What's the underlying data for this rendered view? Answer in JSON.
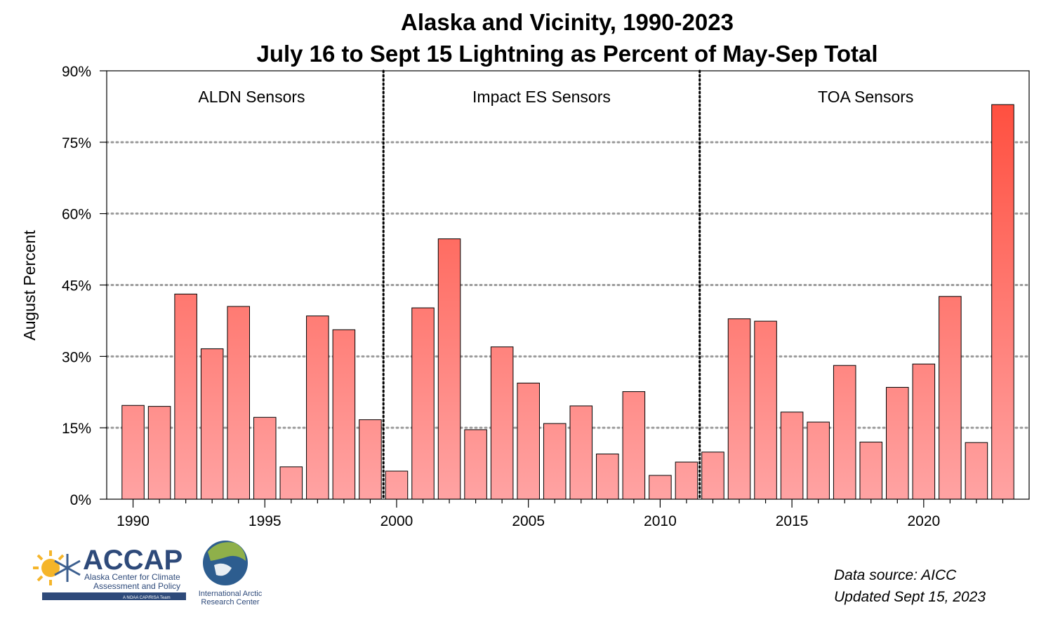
{
  "chart_data": {
    "type": "bar",
    "title": "Alaska and Vicinity, 1990-2023",
    "subtitle": "July 16 to Sept 15 Lightning as Percent of May-Sep Total",
    "ylabel": "August Percent",
    "xlabel": "",
    "ylim": [
      0,
      90
    ],
    "yticks": [
      0,
      15,
      30,
      45,
      60,
      75,
      90
    ],
    "ytick_labels": [
      "0%",
      "15%",
      "30%",
      "45%",
      "60%",
      "75%",
      "90%"
    ],
    "xlim": [
      1989,
      2024
    ],
    "xticks": [
      1990,
      1995,
      2000,
      2005,
      2010,
      2015,
      2020
    ],
    "xtick_labels": [
      "1990",
      "1995",
      "2000",
      "2005",
      "2010",
      "2015",
      "2020"
    ],
    "grid": "horizontal dotted",
    "bar_color_low": "#ffa3a3",
    "bar_color_high": "#ff5040",
    "x": [
      1990,
      1991,
      1992,
      1993,
      1994,
      1995,
      1996,
      1997,
      1998,
      1999,
      2000,
      2001,
      2002,
      2003,
      2004,
      2005,
      2006,
      2007,
      2008,
      2009,
      2010,
      2011,
      2012,
      2013,
      2014,
      2015,
      2016,
      2017,
      2018,
      2019,
      2020,
      2021,
      2022,
      2023
    ],
    "values": [
      19.7,
      19.5,
      43.1,
      31.6,
      40.5,
      17.2,
      6.8,
      38.5,
      35.6,
      16.7,
      5.9,
      40.2,
      54.7,
      14.6,
      32.0,
      24.4,
      15.9,
      19.6,
      9.5,
      22.6,
      5.0,
      7.8,
      9.9,
      37.9,
      37.4,
      18.3,
      16.2,
      28.1,
      12.0,
      23.5,
      28.4,
      42.6,
      11.9,
      82.9
    ],
    "dividers": [
      1999.5,
      2011.5
    ],
    "regions": [
      {
        "label": "ALDN Sensors",
        "center": 1994.5
      },
      {
        "label": "Impact ES Sensors",
        "center": 2005.5
      },
      {
        "label": "TOA Sensors",
        "center": 2017.8
      }
    ]
  },
  "logo": {
    "accap_name": "ACCAP",
    "accap_line1": "Alaska Center for Climate",
    "accap_line2": "Assessment and Policy",
    "accap_tag": "A NOAA CAP/RISA Team",
    "iarc_line1": "International Arctic",
    "iarc_line2": "Research Center"
  },
  "notes": {
    "source": "Data source: AICC",
    "updated": "Updated Sept 15, 2023"
  }
}
